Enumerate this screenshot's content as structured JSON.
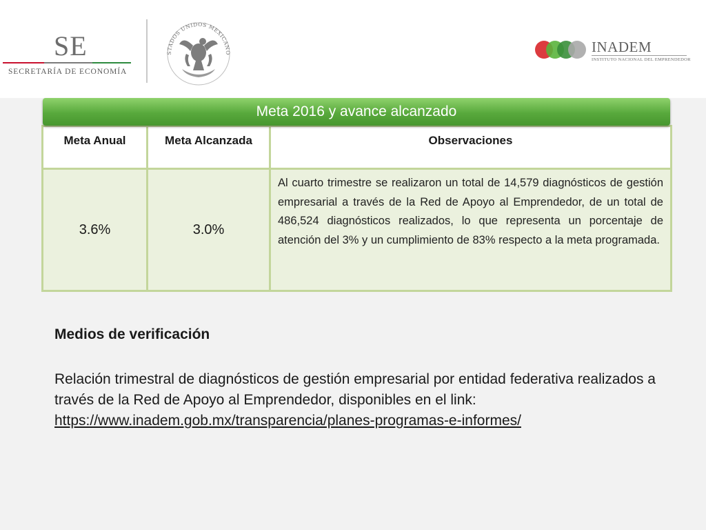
{
  "header": {
    "se_logo": {
      "letters": "SE",
      "subtitle": "SECRETARÍA DE ECONOMÍA"
    },
    "seal": {
      "ring_text": "ESTADOS UNIDOS MEXICANOS"
    },
    "inadem_logo": {
      "name": "INADEM",
      "subtitle": "INSTITUTO NACIONAL DEL EMPRENDEDOR",
      "circle_colors": [
        "#d8262a",
        "#5ab43c",
        "#3a8f3a",
        "#a8a8a8"
      ]
    }
  },
  "table": {
    "title": "Meta 2016 y avance alcanzado",
    "columns": [
      "Meta Anual",
      "Meta Alcanzada",
      "Observaciones"
    ],
    "rows": [
      {
        "meta_anual": "3.6%",
        "meta_alcanzada": "3.0%",
        "observaciones": "Al cuarto trimestre se realizaron un total de 14,579 diagnósticos de gestión empresarial a través de la Red de Apoyo al Emprendedor, de un total de 486,524 diagnósticos realizados, lo que representa un porcentaje de atención del 3% y un cumplimiento de 83% respecto a la meta programada."
      }
    ]
  },
  "verification": {
    "title": "Medios de verificación",
    "text": "Relación trimestral de diagnósticos de gestión empresarial por entidad federativa realizados a través de la Red de Apoyo al Emprendedor, disponibles en el link:",
    "link": "https://www.inadem.gob.mx/transparencia/planes-programas-e-informes/"
  },
  "colors": {
    "banner_green": "#58a93c",
    "table_border": "#c3d69b",
    "cell_fill": "#ebf1de",
    "page_bg": "#f2f2f2"
  }
}
